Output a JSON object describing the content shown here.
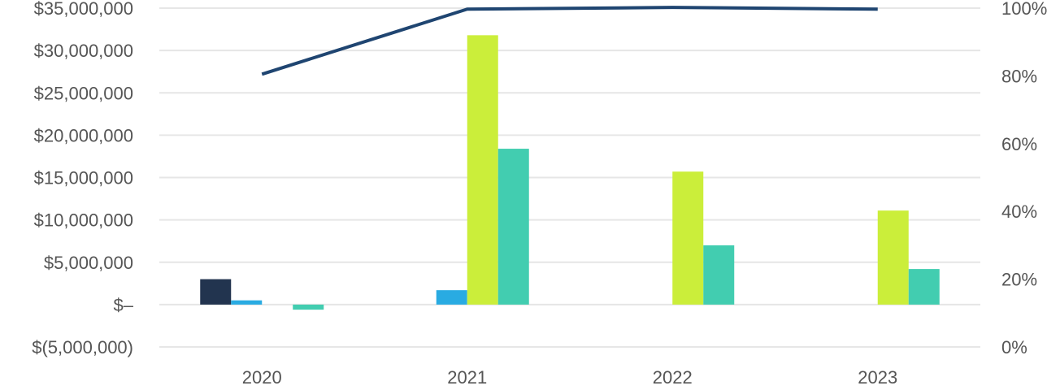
{
  "chart_data": {
    "type": "bar",
    "title": "",
    "xlabel": "",
    "ylabel": "",
    "categories": [
      "2020",
      "2021",
      "2022",
      "2023"
    ],
    "ylim": [
      -5000000,
      35000000
    ],
    "y_ticks": [
      35000000,
      30000000,
      25000000,
      20000000,
      15000000,
      10000000,
      5000000,
      0,
      -5000000
    ],
    "y_tick_labels": [
      "$35,000,000",
      "$30,000,000",
      "$25,000,000",
      "$20,000,000",
      "$15,000,000",
      "$10,000,000",
      "$5,000,000",
      "$–",
      "$(5,000,000)"
    ],
    "y2lim": [
      0,
      100
    ],
    "y2_ticks": [
      100,
      80,
      60,
      40,
      20,
      0
    ],
    "y2_tick_labels": [
      "100%",
      "80%",
      "60%",
      "40%",
      "20%",
      "0%"
    ],
    "grid": true,
    "legend": "none",
    "series": [
      {
        "color": "#22344f",
        "values": [
          3000000,
          0,
          0,
          0
        ]
      },
      {
        "color": "#29abe2",
        "values": [
          500000,
          1700000,
          0,
          0
        ]
      },
      {
        "color": "#cbee3a",
        "values": [
          0,
          31800000,
          15700000,
          11100000
        ]
      },
      {
        "color": "#42cdb0",
        "values": [
          -600000,
          18400000,
          7000000,
          4200000
        ]
      }
    ],
    "line_series": {
      "type": "line",
      "axis": "right",
      "color": "#1f4571",
      "values": [
        80.5,
        99.7,
        100.2,
        99.7
      ]
    }
  }
}
